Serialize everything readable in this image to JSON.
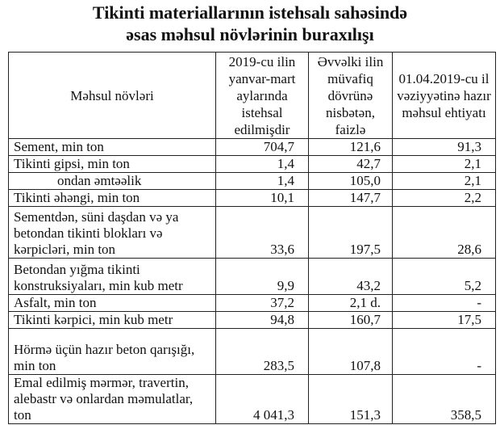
{
  "title": {
    "line1": "Tikinti materiallarının istehsalı sahəsində",
    "line2": "əsas məhsul növlərinin buraxılışı"
  },
  "table": {
    "headers": [
      "Məhsul növləri",
      "2019-cu ilin yanvar-mart aylarında istehsal edilmişdir",
      "Əvvəlki ilin müvafiq dövrünə nisbətən, faizlə",
      "01.04.2019-cu il vəziyyətinə hazır məhsul ehtiyatı"
    ],
    "rows": [
      {
        "name": "Sement, min ton",
        "produced": "704,7",
        "percent": "121,6",
        "stock": "91,3"
      },
      {
        "name": "Tikinti gipsi, min ton",
        "produced": "1,4",
        "percent": "42,7",
        "stock": "2,1"
      },
      {
        "name": "ondan əmtəəlik",
        "produced": "1,4",
        "percent": "105,0",
        "stock": "2,1"
      },
      {
        "name": "Tikinti əhəngi, min ton",
        "produced": "10,1",
        "percent": "147,7",
        "stock": "2,2"
      },
      {
        "name": "Sementdən, süni daşdan və ya betondan tikinti blokları və kərpicləri, min ton",
        "produced": "33,6",
        "percent": "197,5",
        "stock": "28,6"
      },
      {
        "name": "Betondan yığma tikinti konstruksiyaları, min kub metr",
        "produced": "9,9",
        "percent": "43,2",
        "stock": "5,2"
      },
      {
        "name": "Asfalt, min ton",
        "produced": "37,2",
        "percent": "2,1 d.",
        "stock": "-"
      },
      {
        "name": "Tikinti kərpici, min kub metr",
        "produced": "94,8",
        "percent": "160,7",
        "stock": "17,5"
      },
      {
        "name": "Hörmə üçün hazır beton qarışığı, min ton",
        "produced": "283,5",
        "percent": "107,8",
        "stock": "-"
      },
      {
        "name": "Emal edilmiş mərmər, travertin, alebastr və onlardan məmulatlar, ton",
        "produced": "4 041,3",
        "percent": "151,3",
        "stock": "358,5"
      }
    ]
  }
}
